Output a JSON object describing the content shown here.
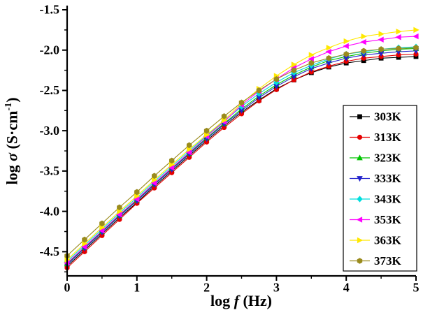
{
  "chart_data": {
    "type": "line-scatter",
    "title": "",
    "xlabel": {
      "prefix": "log ",
      "italic": "f",
      "suffix": " (Hz)"
    },
    "ylabel": {
      "prefix": "log ",
      "italic": "σ",
      "mid": " (S·cm",
      "sup": "-1",
      "close": ")"
    },
    "xlim": [
      0,
      5
    ],
    "ylim": [
      -4.8,
      -1.5
    ],
    "grid": false,
    "legend_position": "inside-right",
    "x_tick_values": [
      0,
      1,
      2,
      3,
      4,
      5
    ],
    "x_tick_labels": [
      "0",
      "1",
      "2",
      "3",
      "4",
      "5"
    ],
    "x_minor_ticks": [
      0.5,
      1.5,
      2.5,
      3.5,
      4.5
    ],
    "y_tick_values": [
      -1.5,
      -2.0,
      -2.5,
      -3.0,
      -3.5,
      -4.0,
      -4.5
    ],
    "y_tick_labels": [
      "-1.5",
      "-2.0",
      "-2.5",
      "-3.0",
      "-3.5",
      "-4.0",
      "-4.5"
    ],
    "y_minor_ticks": [
      -1.75,
      -2.25,
      -2.75,
      -3.25,
      -3.75,
      -4.25,
      -4.75
    ],
    "x": [
      0,
      0.25,
      0.5,
      0.75,
      1,
      1.25,
      1.5,
      1.75,
      2,
      2.25,
      2.5,
      2.75,
      3,
      3.25,
      3.5,
      3.75,
      4,
      4.25,
      4.5,
      4.75,
      5
    ],
    "series": [
      {
        "name": "303K",
        "color": "#000000",
        "marker": "square",
        "values": [
          -4.68,
          -4.48,
          -4.28,
          -4.08,
          -3.89,
          -3.69,
          -3.5,
          -3.31,
          -3.12,
          -2.94,
          -2.77,
          -2.62,
          -2.48,
          -2.37,
          -2.28,
          -2.21,
          -2.16,
          -2.13,
          -2.1,
          -2.09,
          -2.08
        ]
      },
      {
        "name": "313K",
        "color": "#e60000",
        "marker": "circle",
        "values": [
          -4.7,
          -4.5,
          -4.3,
          -4.1,
          -3.9,
          -3.71,
          -3.52,
          -3.33,
          -3.14,
          -2.96,
          -2.79,
          -2.63,
          -2.49,
          -2.37,
          -2.27,
          -2.2,
          -2.14,
          -2.1,
          -2.08,
          -2.06,
          -2.05
        ]
      },
      {
        "name": "323K",
        "color": "#00c400",
        "marker": "triangle-up",
        "values": [
          -4.65,
          -4.45,
          -4.25,
          -4.05,
          -3.86,
          -3.66,
          -3.47,
          -3.28,
          -3.09,
          -2.91,
          -2.73,
          -2.57,
          -2.43,
          -2.31,
          -2.21,
          -2.13,
          -2.08,
          -2.04,
          -2.01,
          -1.99,
          -1.98
        ]
      },
      {
        "name": "333K",
        "color": "#2222cc",
        "marker": "triangle-down",
        "values": [
          -4.66,
          -4.46,
          -4.26,
          -4.06,
          -3.87,
          -3.67,
          -3.48,
          -3.29,
          -3.1,
          -2.92,
          -2.75,
          -2.59,
          -2.45,
          -2.33,
          -2.23,
          -2.16,
          -2.1,
          -2.06,
          -2.04,
          -2.02,
          -2.01
        ]
      },
      {
        "name": "343K",
        "color": "#00dede",
        "marker": "diamond",
        "values": [
          -4.62,
          -4.42,
          -4.22,
          -4.02,
          -3.83,
          -3.63,
          -3.44,
          -3.25,
          -3.06,
          -2.88,
          -2.7,
          -2.54,
          -2.4,
          -2.28,
          -2.19,
          -2.11,
          -2.05,
          -2.02,
          -1.99,
          -1.97,
          -1.96
        ]
      },
      {
        "name": "353K",
        "color": "#ff00ff",
        "marker": "triangle-left",
        "values": [
          -4.64,
          -4.44,
          -4.24,
          -4.04,
          -3.85,
          -3.65,
          -3.46,
          -3.27,
          -3.07,
          -2.89,
          -2.68,
          -2.51,
          -2.36,
          -2.22,
          -2.11,
          -2.02,
          -1.95,
          -1.9,
          -1.87,
          -1.84,
          -1.83
        ]
      },
      {
        "name": "363K",
        "color": "#ffe800",
        "marker": "triangle-right",
        "values": [
          -4.6,
          -4.4,
          -4.2,
          -4.0,
          -3.81,
          -3.61,
          -3.42,
          -3.23,
          -3.05,
          -2.87,
          -2.66,
          -2.48,
          -2.32,
          -2.18,
          -2.06,
          -1.97,
          -1.89,
          -1.83,
          -1.8,
          -1.77,
          -1.75
        ]
      },
      {
        "name": "373K",
        "color": "#9a8b1d",
        "marker": "hexagon",
        "values": [
          -4.55,
          -4.35,
          -4.15,
          -3.95,
          -3.76,
          -3.56,
          -3.37,
          -3.18,
          -3.0,
          -2.82,
          -2.65,
          -2.5,
          -2.36,
          -2.25,
          -2.16,
          -2.1,
          -2.05,
          -2.01,
          -1.99,
          -1.98,
          -1.97
        ]
      }
    ]
  }
}
